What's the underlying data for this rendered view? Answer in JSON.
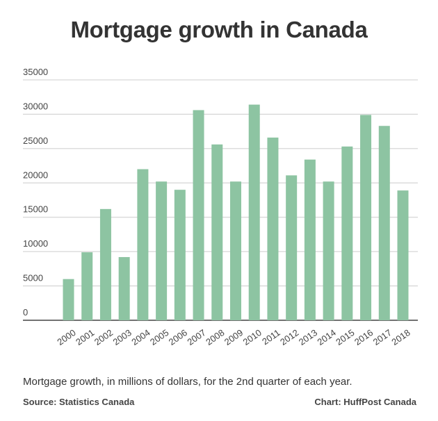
{
  "chart_data": {
    "type": "bar",
    "title": "Mortgage growth in Canada",
    "xlabel": "",
    "ylabel": "",
    "categories": [
      "2000",
      "2001",
      "2002",
      "2003",
      "2004",
      "2005",
      "2006",
      "2007",
      "2008",
      "2009",
      "2010",
      "2011",
      "2012",
      "2013",
      "2014",
      "2015",
      "2016",
      "2017",
      "2018"
    ],
    "values": [
      6000,
      9900,
      16200,
      9200,
      22000,
      20200,
      19000,
      30600,
      25600,
      20200,
      31400,
      26600,
      21100,
      23400,
      20200,
      25300,
      29900,
      28300,
      18900
    ],
    "ylim": [
      0,
      35000
    ],
    "yticks": [
      "0",
      "5000",
      "10000",
      "15000",
      "20000",
      "25000",
      "30000",
      "35000"
    ],
    "grid": true,
    "bar_color": "#8dc4a2",
    "grid_color": "#cccccc"
  },
  "footer": {
    "caption": "Mortgage growth, in millions of dollars, for the 2nd quarter of each year.",
    "source": "Source: Statistics Canada",
    "credit": "Chart: HuffPost Canada"
  }
}
